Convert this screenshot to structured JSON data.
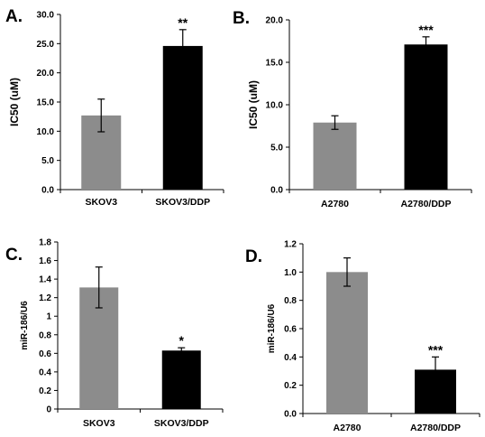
{
  "chart_data": [
    {
      "type": "bar",
      "panel_label": "A.",
      "categories": [
        "SKOV3",
        "SKOV3/DDP"
      ],
      "values": [
        12.7,
        24.6
      ],
      "errors": [
        2.8,
        2.8
      ],
      "significance": [
        "",
        "**"
      ],
      "bar_colors": [
        "#8c8c8c",
        "#000000"
      ],
      "ylabel": "IC50 (uM)",
      "ylim": [
        0,
        30
      ],
      "yticks": [
        "0.0",
        "5.0",
        "10.0",
        "15.0",
        "20.0",
        "25.0",
        "30.0"
      ],
      "grid": false
    },
    {
      "type": "bar",
      "panel_label": "B.",
      "categories": [
        "A2780",
        "A2780/DDP"
      ],
      "values": [
        7.9,
        17.1
      ],
      "errors": [
        0.8,
        0.9
      ],
      "significance": [
        "",
        "***"
      ],
      "bar_colors": [
        "#8c8c8c",
        "#000000"
      ],
      "ylabel": "IC50 (uM)",
      "ylim": [
        0,
        20
      ],
      "yticks": [
        "0.0",
        "5.0",
        "10.0",
        "15.0",
        "20.0"
      ],
      "grid": false
    },
    {
      "type": "bar",
      "panel_label": "C.",
      "categories": [
        "SKOV3",
        "SKOV3/DDP"
      ],
      "values": [
        1.31,
        0.63
      ],
      "errors": [
        0.22,
        0.03
      ],
      "significance": [
        "",
        "*"
      ],
      "bar_colors": [
        "#8c8c8c",
        "#000000"
      ],
      "ylabel": "miR-186/U6",
      "ylim": [
        0,
        1.8
      ],
      "yticks": [
        "0",
        "0.2",
        "0.4",
        "0.6",
        "0.8",
        "1",
        "1.2",
        "1.4",
        "1.6",
        "1.8"
      ],
      "grid": false
    },
    {
      "type": "bar",
      "panel_label": "D.",
      "categories": [
        "A2780",
        "A2780/DDP"
      ],
      "values": [
        1.0,
        0.31
      ],
      "errors": [
        0.1,
        0.09
      ],
      "significance": [
        "",
        "***"
      ],
      "bar_colors": [
        "#8c8c8c",
        "#000000"
      ],
      "ylabel": "miR-186/U6",
      "ylim": [
        0,
        1.2
      ],
      "yticks": [
        "0.0",
        "0.2",
        "0.4",
        "0.6",
        "0.8",
        "1.0",
        "1.2"
      ],
      "grid": false
    }
  ]
}
